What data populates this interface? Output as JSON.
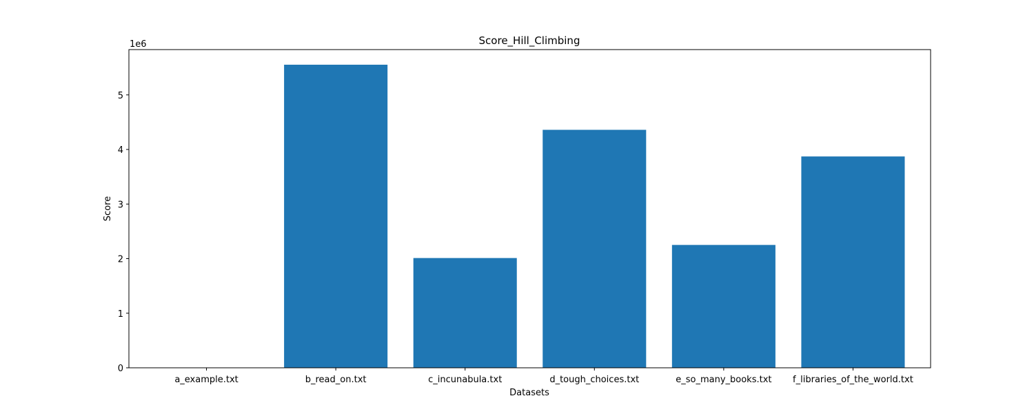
{
  "chart_data": {
    "type": "bar",
    "title": "Score_Hill_Climbing",
    "xlabel": "Datasets",
    "ylabel": "Score",
    "y_offset_label": "1e6",
    "categories": [
      "a_example.txt",
      "b_read_on.txt",
      "c_incunabula.txt",
      "d_tough_choices.txt",
      "e_so_many_books.txt",
      "f_libraries_of_the_world.txt"
    ],
    "values": [
      21,
      5553000,
      2011000,
      4360000,
      2251000,
      3872000
    ],
    "ylim": [
      0,
      5830000
    ],
    "yticks": [
      0,
      1000000,
      2000000,
      3000000,
      4000000,
      5000000
    ],
    "ytick_labels": [
      "0",
      "1",
      "2",
      "3",
      "4",
      "5"
    ],
    "grid": false,
    "legend": "none",
    "bar_color": "#1f77b4"
  }
}
